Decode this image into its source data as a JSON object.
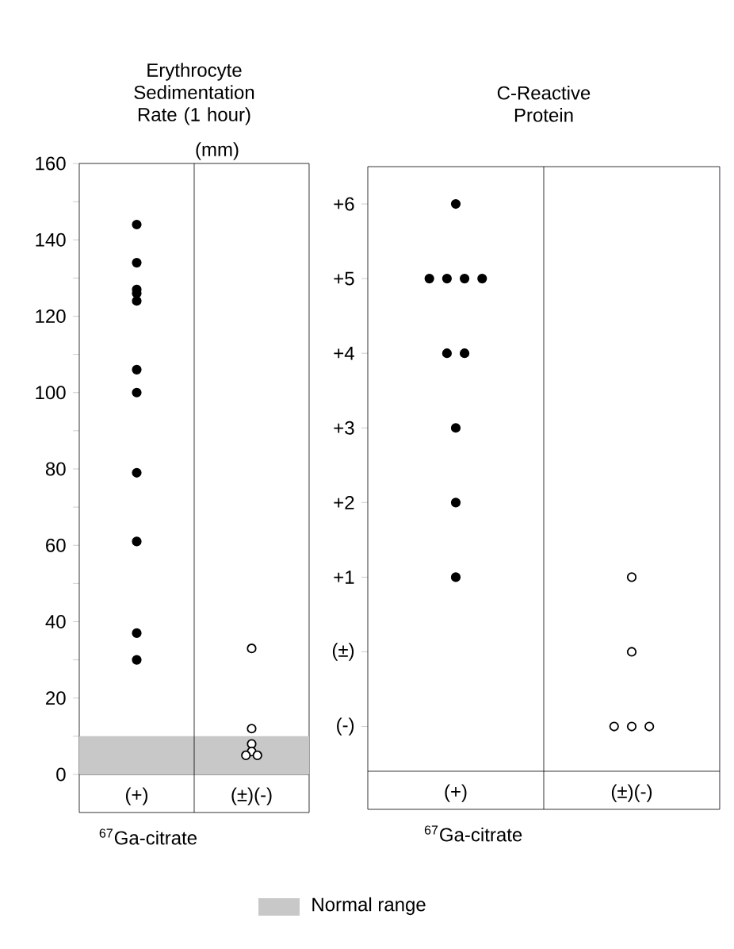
{
  "chart_data": [
    {
      "type": "scatter",
      "title": "Erythrocyte Sedimentation Rate (1 hour)",
      "ylabel": "(mm)",
      "xlabel": "$^{67}$Ga-citrate",
      "categories": [
        "(+)",
        "(±)(-)"
      ],
      "marker": "circle",
      "series": [
        {
          "color": "#000000",
          "x": [
            "(+)",
            "(+)",
            "(+)",
            "(+)",
            "(+)",
            "(+)",
            "(+)",
            "(+)",
            "(+)",
            "(+)",
            "(+)"
          ],
          "values": [
            144,
            134,
            127,
            126,
            124,
            106,
            100,
            79,
            61,
            37,
            30
          ]
        },
        {
          "color": "#ffffff",
          "x": [
            "(±)(-)",
            "(±)(-)",
            "(±)(-)",
            "(±)(-)",
            "(±)(-)",
            "(±)(-)"
          ],
          "values": [
            33,
            12,
            8,
            6,
            5,
            5
          ]
        }
      ],
      "ylim": [
        0,
        160
      ],
      "yticks": [
        0,
        {
          "value": 10,
          "label": null
        },
        20,
        {
          "value": 30,
          "label": null
        },
        40,
        {
          "value": 50,
          "label": null
        },
        60,
        {
          "value": 70,
          "label": null
        },
        80,
        {
          "value": 90,
          "label": null
        },
        100,
        {
          "value": 110,
          "label": null
        },
        120,
        {
          "value": 130,
          "label": null
        },
        140,
        {
          "value": 150,
          "label": null
        },
        160
      ],
      "bands": [
        {
          "axis": "y",
          "from": 0,
          "to": 10,
          "label": "Normal range",
          "color": "#c8c8c8"
        }
      ]
    },
    {
      "type": "scatter",
      "title": "C-Reactive Protein",
      "xlabel": "$^{67}$Ga-citrate",
      "categories": [
        "(+)",
        "(±)(-)"
      ],
      "marker": "circle",
      "series": [
        {
          "color": "#000000",
          "x": [
            "(+)",
            "(+)",
            "(+)",
            "(+)",
            "(+)",
            "(+)",
            "(+)",
            "(+)",
            "(+)",
            "(+)"
          ],
          "values": [
            6,
            5,
            5,
            5,
            5,
            4,
            4,
            3,
            2,
            1
          ]
        },
        {
          "color": "#ffffff",
          "x": [
            "(±)(-)",
            "(±)(-)",
            "(±)(-)",
            "(±)(-)",
            "(±)(-)"
          ],
          "values": [
            1,
            0,
            -1,
            -1,
            -1
          ]
        }
      ],
      "ylim": [
        -1.6,
        6.5
      ],
      "yticks": [
        {
          "value": 6,
          "label": "+6"
        },
        {
          "value": 5,
          "label": "+5"
        },
        {
          "value": 4,
          "label": "+4"
        },
        {
          "value": 3,
          "label": "+3"
        },
        {
          "value": 2,
          "label": "+2"
        },
        {
          "value": 1,
          "label": "+1"
        },
        {
          "value": 0,
          "label": "(±)"
        },
        {
          "value": -1,
          "label": "(-)"
        }
      ]
    }
  ]
}
